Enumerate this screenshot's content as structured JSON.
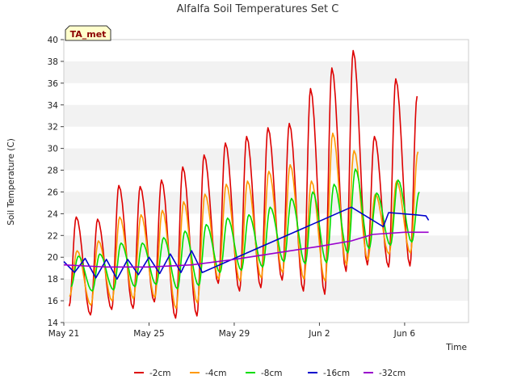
{
  "chart_data": {
    "type": "line",
    "title": "Alfalfa Soil Temperatures Set C",
    "xlabel": "Time",
    "ylabel": "Soil Temperature (C)",
    "badge": "TA_met",
    "ylim": [
      14,
      40
    ],
    "yticks": [
      14,
      16,
      18,
      20,
      22,
      24,
      26,
      28,
      30,
      32,
      34,
      36,
      38,
      40
    ],
    "xlim": [
      "2023-05-21",
      "2023-06-09"
    ],
    "xticks": [
      {
        "date": "2023-05-21",
        "label": "May 21"
      },
      {
        "date": "2023-05-25",
        "label": "May 25"
      },
      {
        "date": "2023-05-29",
        "label": "May 29"
      },
      {
        "date": "2023-06-02",
        "label": "Jun 2"
      },
      {
        "date": "2023-06-06",
        "label": "Jun 6"
      }
    ],
    "grid": "horizontal bands",
    "legend_position": "bottom",
    "series": [
      {
        "name": "-2cm",
        "color": "#dd0000",
        "daily": [
          {
            "date": "2023-05-21",
            "min": 15.5,
            "max": 23.7
          },
          {
            "date": "2023-05-22",
            "min": 14.7,
            "max": 23.5
          },
          {
            "date": "2023-05-23",
            "min": 15.2,
            "max": 26.6
          },
          {
            "date": "2023-05-24",
            "min": 15.3,
            "max": 26.5
          },
          {
            "date": "2023-05-25",
            "min": 15.9,
            "max": 27.1
          },
          {
            "date": "2023-05-26",
            "min": 14.4,
            "max": 28.3
          },
          {
            "date": "2023-05-27",
            "min": 14.6,
            "max": 29.4
          },
          {
            "date": "2023-05-28",
            "min": 17.6,
            "max": 30.5
          },
          {
            "date": "2023-05-29",
            "min": 16.9,
            "max": 31.1
          },
          {
            "date": "2023-05-30",
            "min": 17.2,
            "max": 31.9
          },
          {
            "date": "2023-05-31",
            "min": 17.9,
            "max": 32.3
          },
          {
            "date": "2023-06-01",
            "min": 16.9,
            "max": 35.5
          },
          {
            "date": "2023-06-02",
            "min": 16.6,
            "max": 37.4
          },
          {
            "date": "2023-06-03",
            "min": 18.7,
            "max": 39.0
          },
          {
            "date": "2023-06-04",
            "min": 19.3,
            "max": 31.1
          },
          {
            "date": "2023-06-05",
            "min": 19.1,
            "max": 36.4
          },
          {
            "date": "2023-06-06",
            "min": 19.2,
            "max": 34.8
          }
        ]
      },
      {
        "name": "-4cm",
        "color": "#ff9900",
        "daily": [
          {
            "date": "2023-05-21",
            "min": 16.4,
            "max": 20.6
          },
          {
            "date": "2023-05-22",
            "min": 15.6,
            "max": 21.5
          },
          {
            "date": "2023-05-23",
            "min": 16.0,
            "max": 23.7
          },
          {
            "date": "2023-05-24",
            "min": 16.2,
            "max": 23.9
          },
          {
            "date": "2023-05-25",
            "min": 16.3,
            "max": 24.3
          },
          {
            "date": "2023-05-26",
            "min": 15.3,
            "max": 25.1
          },
          {
            "date": "2023-05-27",
            "min": 15.8,
            "max": 25.8
          },
          {
            "date": "2023-05-28",
            "min": 18.0,
            "max": 26.7
          },
          {
            "date": "2023-05-29",
            "min": 17.8,
            "max": 27.0
          },
          {
            "date": "2023-05-30",
            "min": 18.1,
            "max": 27.9
          },
          {
            "date": "2023-05-31",
            "min": 18.6,
            "max": 28.5
          },
          {
            "date": "2023-06-01",
            "min": 18.0,
            "max": 27.0
          },
          {
            "date": "2023-06-02",
            "min": 17.8,
            "max": 31.4
          },
          {
            "date": "2023-06-03",
            "min": 19.3,
            "max": 29.8
          },
          {
            "date": "2023-06-04",
            "min": 19.8,
            "max": 25.8
          },
          {
            "date": "2023-06-05",
            "min": 20.3,
            "max": 27.0
          },
          {
            "date": "2023-06-06",
            "min": 20.4,
            "max": 29.7
          }
        ]
      },
      {
        "name": "-8cm",
        "color": "#00dd00",
        "daily": [
          {
            "date": "2023-05-21",
            "min": 17.3,
            "max": 20.1
          },
          {
            "date": "2023-05-22",
            "min": 16.9,
            "max": 20.3
          },
          {
            "date": "2023-05-23",
            "min": 17.0,
            "max": 21.3
          },
          {
            "date": "2023-05-24",
            "min": 17.3,
            "max": 21.3
          },
          {
            "date": "2023-05-25",
            "min": 17.5,
            "max": 21.8
          },
          {
            "date": "2023-05-26",
            "min": 17.1,
            "max": 22.4
          },
          {
            "date": "2023-05-27",
            "min": 17.4,
            "max": 23.0
          },
          {
            "date": "2023-05-28",
            "min": 18.6,
            "max": 23.6
          },
          {
            "date": "2023-05-29",
            "min": 18.8,
            "max": 23.9
          },
          {
            "date": "2023-05-30",
            "min": 19.1,
            "max": 24.6
          },
          {
            "date": "2023-05-31",
            "min": 19.6,
            "max": 25.4
          },
          {
            "date": "2023-06-01",
            "min": 19.4,
            "max": 26.0
          },
          {
            "date": "2023-06-02",
            "min": 19.5,
            "max": 26.7
          },
          {
            "date": "2023-06-03",
            "min": 20.4,
            "max": 28.1
          },
          {
            "date": "2023-06-04",
            "min": 20.8,
            "max": 25.9
          },
          {
            "date": "2023-06-05",
            "min": 21.1,
            "max": 27.1
          },
          {
            "date": "2023-06-06",
            "min": 21.4,
            "max": 26.0
          }
        ]
      },
      {
        "name": "-16cm",
        "color": "#0000cc",
        "points": [
          {
            "date": "2023-05-21T00:00",
            "y": 19.6
          },
          {
            "date": "2023-05-21T12:00",
            "y": 18.6
          },
          {
            "date": "2023-05-22T00:00",
            "y": 19.9
          },
          {
            "date": "2023-05-22T12:00",
            "y": 18.1
          },
          {
            "date": "2023-05-23T00:00",
            "y": 19.8
          },
          {
            "date": "2023-05-23T12:00",
            "y": 18.0
          },
          {
            "date": "2023-05-24T00:00",
            "y": 19.8
          },
          {
            "date": "2023-05-24T12:00",
            "y": 18.4
          },
          {
            "date": "2023-05-25T00:00",
            "y": 20.0
          },
          {
            "date": "2023-05-25T12:00",
            "y": 18.5
          },
          {
            "date": "2023-05-26T00:00",
            "y": 20.3
          },
          {
            "date": "2023-05-26T12:00",
            "y": 18.6
          },
          {
            "date": "2023-05-27T00:00",
            "y": 20.6
          },
          {
            "date": "2023-05-27T12:00",
            "y": 18.6
          },
          {
            "date": "2023-06-03T12:00",
            "y": 24.6
          },
          {
            "date": "2023-06-05T00:00",
            "y": 22.8
          },
          {
            "date": "2023-06-05T06:00",
            "y": 24.1
          },
          {
            "date": "2023-06-06T12:00",
            "y": 23.9
          },
          {
            "date": "2023-06-07T00:00",
            "y": 23.8
          },
          {
            "date": "2023-06-07T03:00",
            "y": 23.4
          }
        ]
      },
      {
        "name": "-32cm",
        "color": "#9900cc",
        "points": [
          {
            "date": "2023-05-21T00:00",
            "y": 19.3
          },
          {
            "date": "2023-05-23T00:00",
            "y": 19.1
          },
          {
            "date": "2023-05-25T00:00",
            "y": 19.1
          },
          {
            "date": "2023-05-27T00:00",
            "y": 19.3
          },
          {
            "date": "2023-05-29T00:00",
            "y": 19.8
          },
          {
            "date": "2023-05-31T00:00",
            "y": 20.4
          },
          {
            "date": "2023-06-02T00:00",
            "y": 21.0
          },
          {
            "date": "2023-06-03T12:00",
            "y": 21.5
          },
          {
            "date": "2023-06-04T12:00",
            "y": 22.1
          },
          {
            "date": "2023-06-06T00:00",
            "y": 22.3
          },
          {
            "date": "2023-06-07T03:00",
            "y": 22.3
          }
        ]
      }
    ]
  }
}
